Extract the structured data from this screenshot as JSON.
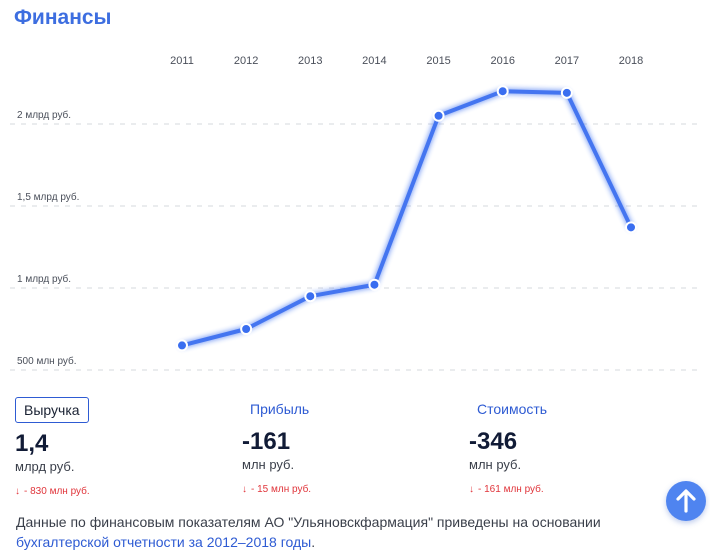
{
  "page": {
    "title": "Финансы"
  },
  "chart_data": {
    "type": "line",
    "x": [
      "2011",
      "2012",
      "2013",
      "2014",
      "2015",
      "2016",
      "2017",
      "2018"
    ],
    "series": [
      {
        "values": [
          0.65,
          0.75,
          0.95,
          1.02,
          2.05,
          2.2,
          2.19,
          1.37
        ]
      }
    ],
    "ylim": [
      0.45,
      2.35
    ],
    "yticks": [
      {
        "value": 0.5,
        "label": "500 млн руб."
      },
      {
        "value": 1.0,
        "label": "1 млрд руб."
      },
      {
        "value": 1.5,
        "label": "1,5 млрд руб."
      },
      {
        "value": 2.0,
        "label": "2 млрд руб."
      }
    ],
    "x_axis_position": "top",
    "grid": true,
    "line_color": "#3a6ef0"
  },
  "metrics": [
    {
      "tab": "Выручка",
      "value": "1,4",
      "unit": "млрд руб.",
      "arrow": "↓",
      "change": "- 830 млн руб."
    },
    {
      "tab": "Прибыль",
      "value": "-161",
      "unit": "млн руб.",
      "arrow": "↓",
      "change": "- 15 млн руб."
    },
    {
      "tab": "Стоимость",
      "value": "-346",
      "unit": "млн руб.",
      "arrow": "↓",
      "change": "- 161 млн руб."
    }
  ],
  "footnote": {
    "text": "Данные по финансовым показателям АО \"Ульяновскфармация\" приведены на основании",
    "link": "бухгалтерской отчетности за 2012–2018 годы",
    "end": "."
  },
  "scroll_top_icon": "arrow-up-icon",
  "colors": {
    "accent": "#3d6ee0",
    "decline": "#e0353b",
    "button": "#4f84f0"
  }
}
